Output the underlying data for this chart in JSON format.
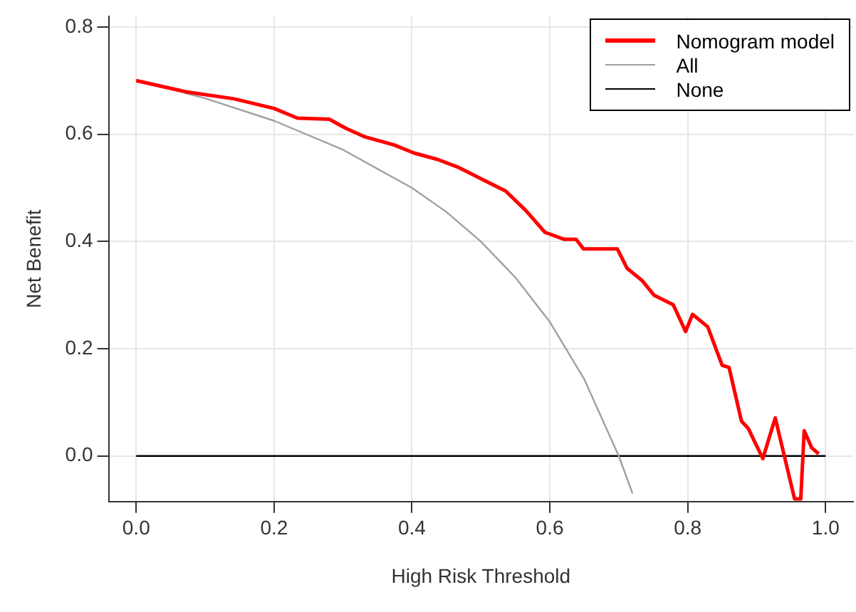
{
  "chart_data": {
    "type": "line",
    "xlabel": "High Risk Threshold",
    "ylabel": "Net Benefit",
    "xlim": [
      -0.04,
      1.04
    ],
    "ylim": [
      -0.085,
      0.82
    ],
    "xticks": [
      {
        "value": 0,
        "label": "0.0"
      },
      0.2,
      0.4,
      0.6,
      0.8,
      {
        "value": 1,
        "label": "1.0"
      }
    ],
    "yticks": [
      {
        "value": 0,
        "label": "0.0"
      },
      0.2,
      0.4,
      0.6,
      0.8
    ],
    "grid": true,
    "legend": "top right",
    "marker": "none",
    "line_style": "solid",
    "series": [
      {
        "name": "Nomogram model",
        "color": "#ff0000",
        "x": [
          0,
          0.072,
          0.142,
          0.2,
          0.234,
          0.28,
          0.304,
          0.332,
          0.374,
          0.403,
          0.437,
          0.466,
          0.508,
          0.536,
          0.565,
          0.593,
          0.621,
          0.638,
          0.649,
          0.698,
          0.712,
          0.734,
          0.751,
          0.779,
          0.797,
          0.807,
          0.829,
          0.85,
          0.86,
          0.878,
          0.888,
          0.909,
          0.927,
          0.955,
          0.964,
          0.969,
          0.98,
          0.99
        ],
        "values": [
          0.7,
          0.679,
          0.666,
          0.648,
          0.63,
          0.628,
          0.611,
          0.595,
          0.58,
          0.565,
          0.553,
          0.539,
          0.512,
          0.494,
          0.458,
          0.417,
          0.404,
          0.404,
          0.386,
          0.386,
          0.35,
          0.327,
          0.3,
          0.282,
          0.232,
          0.264,
          0.241,
          0.169,
          0.165,
          0.065,
          0.051,
          -0.005,
          0.071,
          -0.08,
          -0.08,
          0.047,
          0.015,
          0.004
        ]
      },
      {
        "name": "All",
        "color": "#a0a0a0",
        "x": [
          0.07,
          0.1,
          0.2,
          0.3,
          0.4,
          0.45,
          0.5,
          0.55,
          0.6,
          0.65,
          0.7,
          0.72
        ],
        "values": [
          0.677,
          0.667,
          0.625,
          0.571,
          0.5,
          0.455,
          0.4,
          0.333,
          0.25,
          0.143,
          0,
          -0.07
        ]
      },
      {
        "name": "None",
        "color": "#000000",
        "x": [
          0,
          1
        ],
        "values": [
          0,
          0
        ]
      }
    ]
  }
}
